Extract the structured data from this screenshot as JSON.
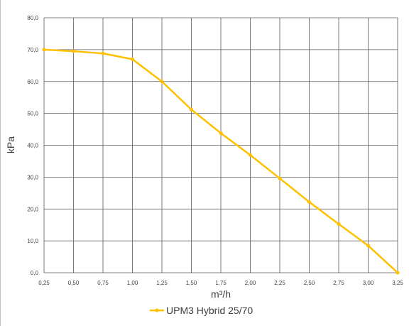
{
  "chart_data": {
    "type": "line",
    "title": "",
    "xlabel": "m³/h",
    "ylabel": "kPa",
    "x_ticks": [
      "0,25",
      "0,50",
      "0,75",
      "1,00",
      "1,25",
      "1,50",
      "1,75",
      "2,00",
      "2,25",
      "2,50",
      "2,75",
      "3,00",
      "3,25"
    ],
    "y_ticks": [
      "0,0",
      "10,0",
      "20,0",
      "30,0",
      "40,0",
      "50,0",
      "60,0",
      "70,0",
      "80,0"
    ],
    "xlim": [
      0.25,
      3.25
    ],
    "ylim": [
      0,
      80
    ],
    "grid": true,
    "legend_position": "bottom",
    "series": [
      {
        "name": "UPM3 Hybrid 25/70",
        "color": "#FFC000",
        "x": [
          0.25,
          0.5,
          0.75,
          1.0,
          1.25,
          1.5,
          1.75,
          2.0,
          2.25,
          2.5,
          2.75,
          3.0,
          3.25
        ],
        "y": [
          70.0,
          69.5,
          68.8,
          67.0,
          60.0,
          51.2,
          43.8,
          36.9,
          29.6,
          22.2,
          15.3,
          8.5,
          0.0
        ]
      }
    ]
  }
}
